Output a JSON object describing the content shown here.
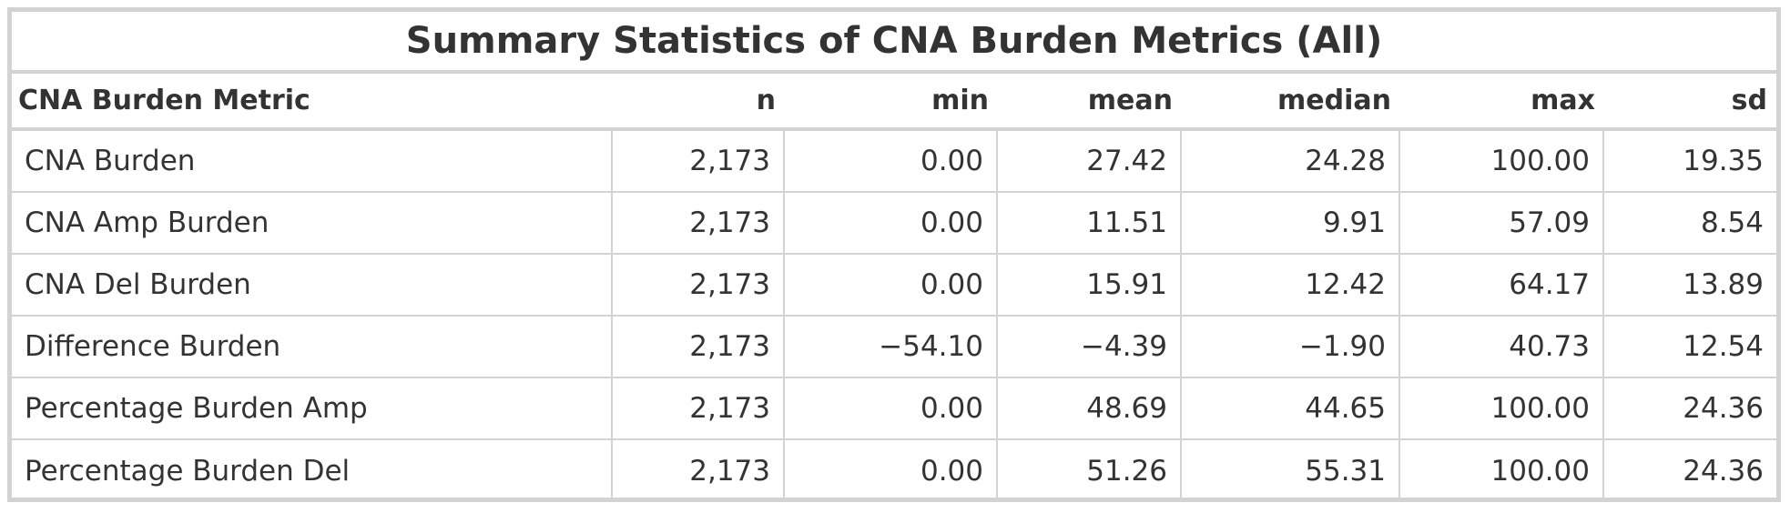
{
  "chart_data": {
    "type": "table",
    "title": "Summary Statistics of CNA Burden Metrics (All)",
    "columns": [
      "CNA Burden Metric",
      "n",
      "min",
      "mean",
      "median",
      "max",
      "sd"
    ],
    "rows": [
      [
        "CNA Burden",
        "2,173",
        "0.00",
        "27.42",
        "24.28",
        "100.00",
        "19.35"
      ],
      [
        "CNA Amp Burden",
        "2,173",
        "0.00",
        "11.51",
        "9.91",
        "57.09",
        "8.54"
      ],
      [
        "CNA Del Burden",
        "2,173",
        "0.00",
        "15.91",
        "12.42",
        "64.17",
        "13.89"
      ],
      [
        "Difference Burden",
        "2,173",
        "−54.10",
        "−4.39",
        "−1.90",
        "40.73",
        "12.54"
      ],
      [
        "Percentage Burden Amp",
        "2,173",
        "0.00",
        "48.69",
        "44.65",
        "100.00",
        "24.36"
      ],
      [
        "Percentage Burden Del",
        "2,173",
        "0.00",
        "51.26",
        "55.31",
        "100.00",
        "24.36"
      ]
    ]
  }
}
